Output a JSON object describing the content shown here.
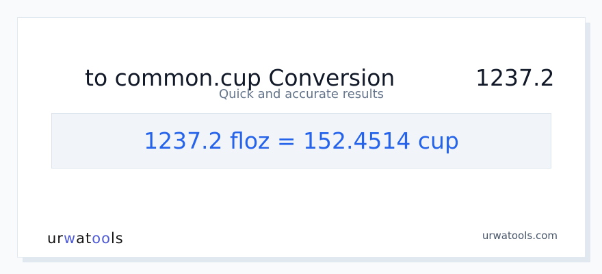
{
  "header": {
    "title": "to common.cup Conversion",
    "value": "1237.2",
    "subtitle": "Quick and accurate results"
  },
  "result": {
    "text": "1237.2 floz = 152.4514 cup"
  },
  "footer": {
    "logo_text": "urwatools",
    "domain": "urwatools.com"
  },
  "colors": {
    "accent": "#2563eb",
    "logo_accent": "#4f5bd5"
  }
}
